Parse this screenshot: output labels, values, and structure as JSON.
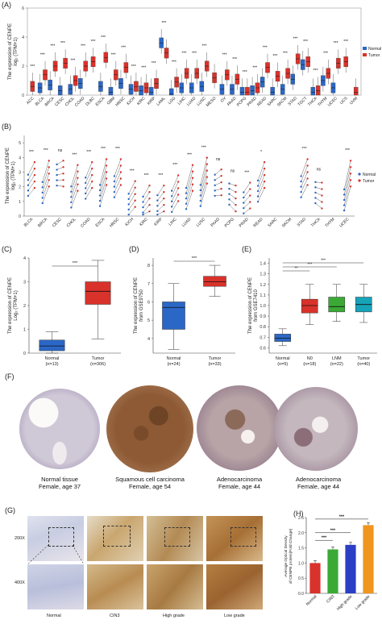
{
  "panels": {
    "A": {
      "label": "(A)",
      "ylabel": "The expression of CENPE",
      "ylabel2": "log₂ (TPM+1)",
      "legend": [
        "Normal",
        "Tumor"
      ],
      "colors": {
        "normal": "#2b67c6",
        "tumor": "#d9322b"
      },
      "ylim": [
        0,
        6
      ],
      "yticks": [
        "0",
        "2",
        "4",
        "6"
      ],
      "categories": [
        "ACC",
        "BLCA",
        "BRCA",
        "CESC",
        "CHOL",
        "COAD",
        "DLBC",
        "ESCA",
        "GBM",
        "HNSC",
        "KICH",
        "KIRC",
        "KIRP",
        "LAML",
        "LGG",
        "LIHC",
        "LUAD",
        "LUSC",
        "MESO",
        "OV",
        "PAAD",
        "PCPG",
        "PRAD",
        "READ",
        "SARC",
        "SKCM",
        "STAD",
        "TGCT",
        "THCA",
        "THYM",
        "UCEC",
        "UCS",
        "UVM"
      ],
      "normal": [
        null,
        0.5,
        0.7,
        0.3,
        0.4,
        0.8,
        null,
        0.6,
        0.2,
        0.8,
        0.4,
        0.3,
        0.2,
        3.6,
        0.1,
        0.5,
        0.5,
        0.6,
        null,
        0.4,
        0.4,
        0.2,
        0.3,
        0.9,
        0.2,
        0.4,
        1.1,
        2.1,
        0.2,
        1.0,
        0.5,
        null,
        null
      ],
      "tumor": [
        0.6,
        1.4,
        2.0,
        2.2,
        1.0,
        2.0,
        2.3,
        2.6,
        1.4,
        1.9,
        0.6,
        0.5,
        0.8,
        2.9,
        0.9,
        1.5,
        1.5,
        2.0,
        1.2,
        1.4,
        1.1,
        0.2,
        0.5,
        1.9,
        1.3,
        1.5,
        2.5,
        2.3,
        0.3,
        1.5,
        2.2,
        2.3,
        0.2
      ],
      "sig": [
        "***",
        "***",
        "***",
        "***",
        "***",
        "***",
        "***",
        "***",
        "***",
        "***",
        "***",
        "***",
        "***",
        "***",
        "***",
        "***",
        "***",
        "***",
        "",
        "***",
        "***",
        "***",
        "***",
        "***",
        "***",
        "***",
        "***",
        "***",
        "***",
        "***",
        "***",
        "***",
        ""
      ]
    },
    "B": {
      "label": "(B)",
      "ylabel": "The expression of CENPE",
      "ylabel2": "log₂ (TPM+1)",
      "legend": [
        "Normal",
        "Tumor"
      ],
      "yticks": [
        "0",
        "1",
        "2",
        "3",
        "4",
        "5"
      ],
      "categories": [
        "BLCA",
        "BRCA",
        "CESC",
        "CHOL",
        "COAD",
        "ESCA",
        "HNSC",
        "KICH",
        "KIRC",
        "KIRP",
        "LIHC",
        "LUAD",
        "LUSC",
        "PAAD",
        "PCPG",
        "PRAD",
        "READ",
        "SARC",
        "SKCM",
        "STAD",
        "THCA",
        "THYM",
        "UCEC"
      ],
      "normal": [
        2.1,
        1.6,
        2.8,
        1.3,
        1.9,
        1.4,
        2.0,
        0.8,
        0.6,
        0.7,
        1.0,
        1.2,
        1.4,
        2.1,
        1.5,
        0.9,
        1.7,
        null,
        null,
        2.0,
        1.6,
        null,
        1.1
      ],
      "tumor": [
        2.8,
        2.9,
        2.9,
        2.6,
        2.8,
        3.0,
        3.0,
        1.5,
        1.2,
        1.2,
        1.9,
        2.6,
        3.1,
        2.3,
        1.2,
        1.4,
        2.8,
        null,
        null,
        3.0,
        1.4,
        null,
        2.9
      ],
      "sig": [
        "***",
        "***",
        "ns",
        "***",
        "***",
        "***",
        "***",
        "***",
        "***",
        "***",
        "***",
        "***",
        "***",
        "ns",
        "ns",
        "***",
        "*",
        "",
        "",
        "***",
        "ns",
        "",
        "***"
      ]
    },
    "C": {
      "label": "(C)",
      "ylabel": "The expression of CENPE",
      "ylabel2": "Log₂ (TPM+1)",
      "yticks": [
        "0",
        "1",
        "2",
        "3",
        "4"
      ],
      "ylim": [
        0,
        4
      ],
      "groups": [
        {
          "name": "Normal",
          "n": "(n=13)",
          "q1": 0.1,
          "median": 0.3,
          "q3": 0.55,
          "lo": 0.0,
          "hi": 0.9,
          "color": "#2b67c6"
        },
        {
          "name": "Tumor",
          "n": "(n=306)",
          "q1": 2.05,
          "median": 2.6,
          "q3": 3.0,
          "lo": 0.6,
          "hi": 3.9,
          "color": "#d9322b"
        }
      ],
      "sig": "***"
    },
    "D": {
      "label": "(D)",
      "ylabel": "The expression of CENPE",
      "ylabel2": "from GSE9750",
      "yticks": [
        "4",
        "5",
        "6",
        "7",
        "8"
      ],
      "ylim": [
        3.2,
        8.4
      ],
      "groups": [
        {
          "name": "Normal",
          "n": "(n=24)",
          "q1": 4.5,
          "median": 5.7,
          "q3": 6.0,
          "lo": 3.4,
          "hi": 7.0,
          "color": "#2b67c6"
        },
        {
          "name": "Tumor",
          "n": "(n=33)",
          "q1": 6.85,
          "median": 7.1,
          "q3": 7.4,
          "lo": 6.3,
          "hi": 8.0,
          "color": "#d9322b"
        }
      ],
      "sig": "***"
    },
    "E": {
      "label": "(E)",
      "ylabel": "The expression of CENPE",
      "ylabel2": "from GSE7410",
      "yticks": [
        "0.6",
        "0.7",
        "0.8",
        "0.9",
        "1.0",
        "1.1",
        "1.2",
        "1.3",
        "1.4"
      ],
      "ylim": [
        0.55,
        1.45
      ],
      "groups": [
        {
          "name": "Normal",
          "n": "(n=5)",
          "q1": 0.66,
          "median": 0.69,
          "q3": 0.73,
          "lo": 0.62,
          "hi": 0.78,
          "color": "#2b67c6"
        },
        {
          "name": "N0",
          "n": "(n=18)",
          "q1": 0.93,
          "median": 1.0,
          "q3": 1.06,
          "lo": 0.82,
          "hi": 1.2,
          "color": "#d9322b"
        },
        {
          "name": "LNM",
          "n": "(n=22)",
          "q1": 0.94,
          "median": 0.99,
          "q3": 1.08,
          "lo": 0.85,
          "hi": 1.2,
          "color": "#3aaa35"
        },
        {
          "name": "Tumor",
          "n": "(n=40)",
          "q1": 0.94,
          "median": 1.01,
          "q3": 1.08,
          "lo": 0.84,
          "hi": 1.2,
          "color": "#17a3b8"
        }
      ],
      "sig": [
        "**",
        "***",
        "***"
      ]
    },
    "F": {
      "label": "(F)",
      "tissues": [
        {
          "line1": "Normal tissue",
          "line2": "Female, age 37"
        },
        {
          "line1": "Squamous cell carcinoma",
          "line2": "Female, age 54"
        },
        {
          "line1": "Adenocarcinoma",
          "line2": "Female, age 44"
        },
        {
          "line1": "Adenocarcinoma",
          "line2": "Female, age 44"
        }
      ]
    },
    "G": {
      "label": "(G)",
      "rows": [
        "200X",
        "400X"
      ],
      "cols": [
        "Normal",
        "CIN3",
        "High grade",
        "Low grade"
      ]
    },
    "H": {
      "label": "(H)",
      "ylabel": "Average Optical Density",
      "ylabel2": "of CENPE protein(Fold Change)",
      "yticks": [
        "0.0",
        "0.5",
        "1.0",
        "1.5",
        "2.0",
        "2.5"
      ],
      "ylim": [
        0,
        2.5
      ],
      "bars": [
        {
          "name": "Normal",
          "value": 1.0,
          "color": "#d9322b"
        },
        {
          "name": "CIN3",
          "value": 1.45,
          "color": "#3aaa35"
        },
        {
          "name": "High grade",
          "value": 1.6,
          "color": "#2b3fc6"
        },
        {
          "name": "Low grade",
          "value": 2.25,
          "color": "#f0951e"
        }
      ],
      "sig": [
        "***",
        "***",
        "***"
      ]
    }
  },
  "chart_data": [
    {
      "type": "bar",
      "title": "",
      "panel": "A",
      "ylabel": "The expression of CENPE log₂ (TPM+1)",
      "ylim": [
        0,
        6
      ],
      "categories": [
        "ACC",
        "BLCA",
        "BRCA",
        "CESC",
        "CHOL",
        "COAD",
        "DLBC",
        "ESCA",
        "GBM",
        "HNSC",
        "KICH",
        "KIRC",
        "KIRP",
        "LAML",
        "LGG",
        "LIHC",
        "LUAD",
        "LUSC",
        "MESO",
        "OV",
        "PAAD",
        "PCPG",
        "PRAD",
        "READ",
        "SARC",
        "SKCM",
        "STAD",
        "TGCT",
        "THCA",
        "THYM",
        "UCEC",
        "UCS",
        "UVM"
      ],
      "series": [
        {
          "name": "Normal",
          "values": [
            null,
            0.5,
            0.7,
            0.3,
            0.4,
            0.8,
            null,
            0.6,
            0.2,
            0.8,
            0.4,
            0.3,
            0.2,
            3.6,
            0.1,
            0.5,
            0.5,
            0.6,
            null,
            0.4,
            0.4,
            0.2,
            0.3,
            0.9,
            0.2,
            0.4,
            1.1,
            2.1,
            0.2,
            1.0,
            0.5,
            null,
            null
          ]
        },
        {
          "name": "Tumor",
          "values": [
            0.6,
            1.4,
            2.0,
            2.2,
            1.0,
            2.0,
            2.3,
            2.6,
            1.4,
            1.9,
            0.6,
            0.5,
            0.8,
            2.9,
            0.9,
            1.5,
            1.5,
            2.0,
            1.2,
            1.4,
            1.1,
            0.2,
            0.5,
            1.9,
            1.3,
            1.5,
            2.5,
            2.3,
            0.3,
            1.5,
            2.2,
            2.3,
            0.2
          ]
        }
      ]
    },
    {
      "type": "bar",
      "panel": "C",
      "categories": [
        "Normal",
        "Tumor"
      ],
      "values": [
        0.3,
        2.6
      ],
      "ylim": [
        0,
        4
      ]
    },
    {
      "type": "bar",
      "panel": "D",
      "categories": [
        "Normal",
        "Tumor"
      ],
      "values": [
        5.7,
        7.1
      ]
    },
    {
      "type": "bar",
      "panel": "E",
      "categories": [
        "Normal",
        "N0",
        "LNM",
        "Tumor"
      ],
      "values": [
        0.69,
        1.0,
        0.99,
        1.01
      ]
    },
    {
      "type": "bar",
      "panel": "H",
      "categories": [
        "Normal",
        "CIN3",
        "High grade",
        "Low grade"
      ],
      "values": [
        1.0,
        1.45,
        1.6,
        2.25
      ],
      "ylim": [
        0,
        2.5
      ]
    }
  ]
}
